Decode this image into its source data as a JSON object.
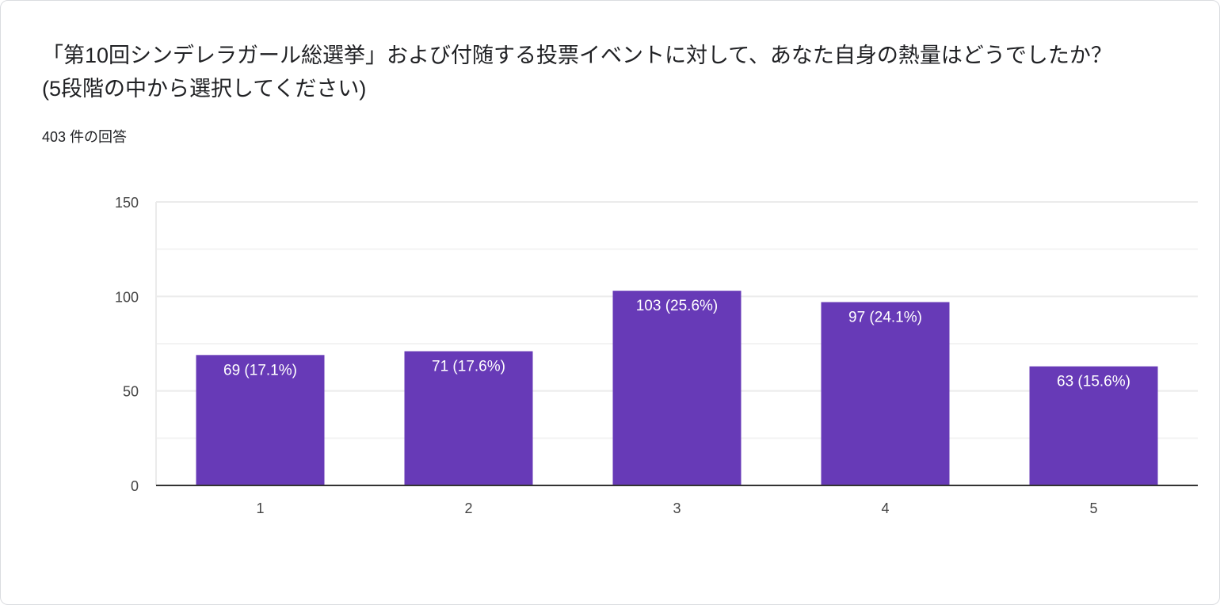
{
  "question": {
    "title": "「第10回シンデレラガール総選挙」および付随する投票イベントに対して、あなた自身の熱量はどうでしたか？ (5段階の中から選択してください)",
    "response_count": "403 件の回答"
  },
  "chart_data": {
    "type": "bar",
    "categories": [
      "1",
      "2",
      "3",
      "4",
      "5"
    ],
    "values": [
      69,
      71,
      103,
      97,
      63
    ],
    "data_labels": [
      "69 (17.1%)",
      "71 (17.6%)",
      "103 (25.6%)",
      "97 (24.1%)",
      "63 (15.6%)"
    ],
    "ylim": [
      0,
      150
    ],
    "yticks": [
      "0",
      "50",
      "100",
      "150"
    ],
    "minor_grid_step": 25,
    "grid": true,
    "bar_color": "#673ab7"
  }
}
